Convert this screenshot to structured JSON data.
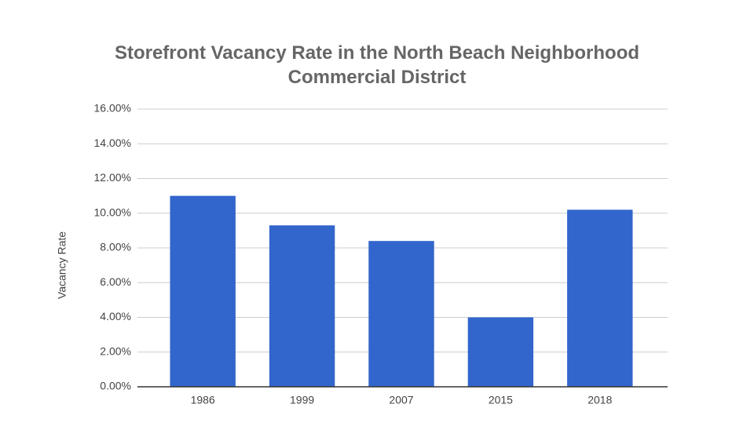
{
  "chart_data": {
    "type": "bar",
    "title": "Storefront Vacancy Rate in the North Beach Neighborhood Commercial District",
    "y_label": "Vacancy Rate",
    "categories": [
      "1986",
      "1999",
      "2007",
      "2015",
      "2018"
    ],
    "values": [
      11.0,
      9.3,
      8.4,
      4.0,
      10.2
    ],
    "color": "#3366cc",
    "ylim": [
      0,
      16
    ],
    "yticks": [
      {
        "value": 0,
        "label": "0.00%"
      },
      {
        "value": 2,
        "label": "2.00%"
      },
      {
        "value": 4,
        "label": "4.00%"
      },
      {
        "value": 6,
        "label": "6.00%"
      },
      {
        "value": 8,
        "label": "8.00%"
      },
      {
        "value": 10,
        "label": "10.00%"
      },
      {
        "value": 12,
        "label": "12.00%"
      },
      {
        "value": 14,
        "label": "14.00%"
      },
      {
        "value": 16,
        "label": "16.00%"
      }
    ],
    "grid": true
  }
}
